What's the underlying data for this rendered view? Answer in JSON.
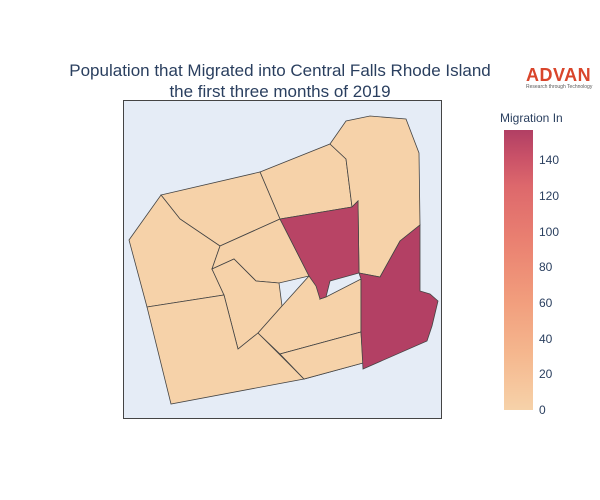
{
  "title_line1": "Population that Migrated into Central Falls Rhode Island",
  "title_line2": "the first three months of 2019",
  "logo": {
    "name": "ADVAN",
    "tagline": "Research through Technology",
    "color": "#d9452b"
  },
  "colorbar": {
    "title": "Migration In",
    "min": 0,
    "max": 157,
    "ticks": [
      "0",
      "20",
      "40",
      "60",
      "80",
      "100",
      "120",
      "140"
    ],
    "tick_values": [
      0,
      20,
      40,
      60,
      80,
      100,
      120,
      140
    ],
    "colors": [
      "#f6d2a9",
      "#f5b78e",
      "#f19c7c",
      "#ea8171",
      "#dd686c",
      "#ca5268",
      "#b13f64"
    ]
  },
  "map": {
    "background": "#e5ecf6",
    "border_color": "#444444",
    "regions": [
      {
        "id": "north-central",
        "value": 0
      },
      {
        "id": "northwest-upper",
        "value": 0
      },
      {
        "id": "west",
        "value": 0
      },
      {
        "id": "center-west",
        "value": 0
      },
      {
        "id": "center-mid",
        "value": 0
      },
      {
        "id": "center-south",
        "value": 0
      },
      {
        "id": "southwest",
        "value": 0
      },
      {
        "id": "south-central",
        "value": 0
      },
      {
        "id": "southeast-lower",
        "value": 0
      },
      {
        "id": "northeast",
        "value": 0
      },
      {
        "id": "central-high",
        "value": 150
      },
      {
        "id": "east-high",
        "value": 155
      }
    ]
  }
}
